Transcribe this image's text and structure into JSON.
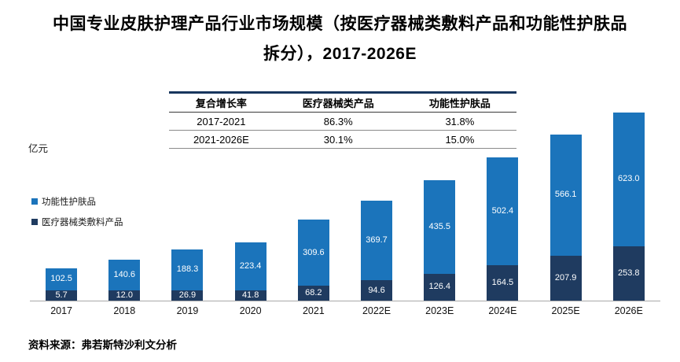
{
  "title": {
    "line1": "中国专业皮肤护理产品行业市场规模（按医疗器械类敷料产品和功能性护肤品",
    "line2": "拆分），2017-2026E"
  },
  "table": {
    "headers": [
      "复合增长率",
      "医疗器械类产品",
      "功能性护肤品"
    ],
    "rows": [
      [
        "2017-2021",
        "86.3%",
        "31.8%"
      ],
      [
        "2021-2026E",
        "30.1%",
        "15.0%"
      ]
    ]
  },
  "axis_label": "亿元",
  "legend": [
    {
      "label": "功能性护肤品",
      "color": "#1b74bb"
    },
    {
      "label": "医疗器械类敷料产品",
      "color": "#1f3b60"
    }
  ],
  "source": "资料来源：弗若斯特沙利文分析",
  "chart_data": {
    "type": "bar",
    "stacked": true,
    "title": "中国专业皮肤护理产品行业市场规模（按医疗器械类敷料产品和功能性护肤品拆分），2017-2026E",
    "ylabel": "亿元",
    "ylim": [
      0,
      900
    ],
    "grid": false,
    "legend_position": "left",
    "categories": [
      "2017",
      "2018",
      "2019",
      "2020",
      "2021",
      "2022E",
      "2023E",
      "2024E",
      "2025E",
      "2026E"
    ],
    "series": [
      {
        "name": "医疗器械类敷料产品",
        "color": "#1f3b60",
        "values": [
          5.7,
          12.0,
          26.9,
          41.8,
          68.2,
          94.6,
          126.4,
          164.5,
          207.9,
          253.8
        ]
      },
      {
        "name": "功能性护肤品",
        "color": "#1b74bb",
        "values": [
          102.5,
          140.6,
          188.3,
          223.4,
          309.6,
          369.7,
          435.5,
          502.4,
          566.1,
          623.0
        ]
      }
    ]
  }
}
